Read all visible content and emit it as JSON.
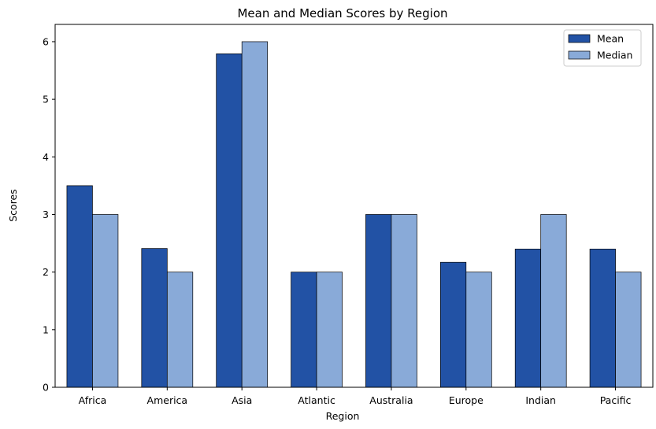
{
  "chart_data": {
    "type": "bar",
    "title": "Mean and Median Scores by Region",
    "xlabel": "Region",
    "ylabel": "Scores",
    "categories": [
      "Africa",
      "America",
      "Asia",
      "Atlantic",
      "Australia",
      "Europe",
      "Indian",
      "Pacific"
    ],
    "series": [
      {
        "name": "Mean",
        "color": "#2252a5",
        "values": [
          3.5,
          2.41,
          5.79,
          2.0,
          3.0,
          2.17,
          2.4,
          2.4
        ]
      },
      {
        "name": "Median",
        "color": "#89aad8",
        "values": [
          3.0,
          2.0,
          6.0,
          2.0,
          3.0,
          2.0,
          3.0,
          2.0
        ]
      }
    ],
    "ylim": [
      0,
      6.3
    ],
    "yticks": [
      0,
      1,
      2,
      3,
      4,
      5,
      6
    ],
    "grid": false,
    "legend_position": "top-right"
  }
}
